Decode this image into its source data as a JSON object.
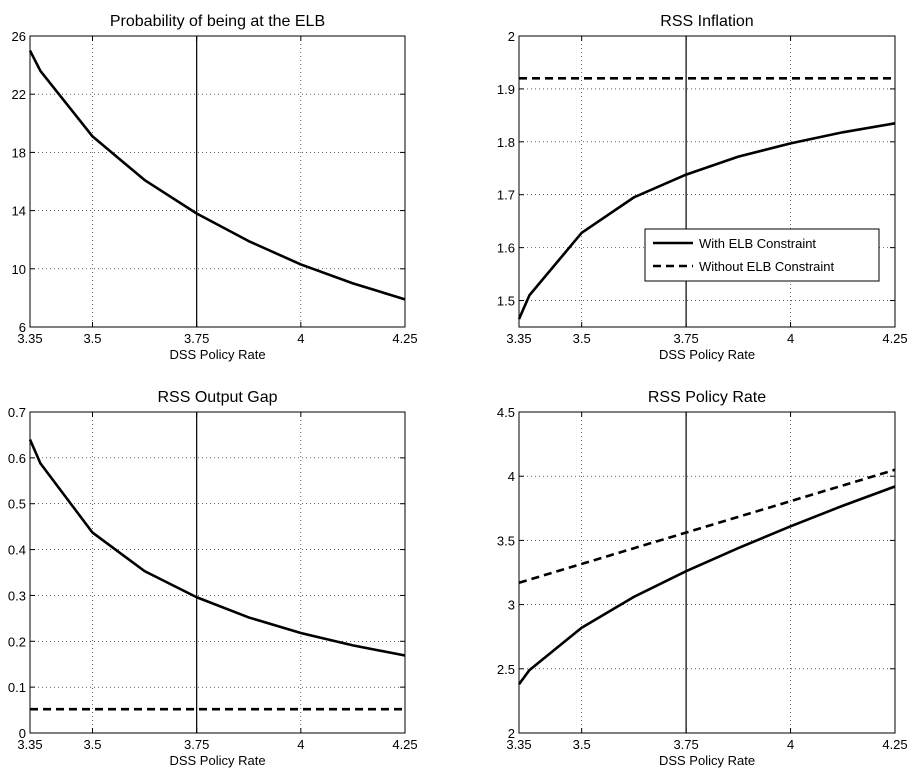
{
  "chart_data": [
    {
      "type": "line",
      "title": "Probability of being at the ELB",
      "xlabel": "DSS Policy Rate",
      "ylabel": "",
      "xlim": [
        3.35,
        4.25
      ],
      "ylim": [
        6,
        26
      ],
      "xticks": [
        3.35,
        3.5,
        3.75,
        4,
        4.25
      ],
      "xtick_labels": [
        "3.35",
        "3.5",
        "3.75",
        "4",
        "4.25"
      ],
      "yticks": [
        6,
        10,
        14,
        18,
        22,
        26
      ],
      "ytick_labels": [
        "6",
        "10",
        "14",
        "18",
        "22",
        "26"
      ],
      "grid": true,
      "vline": 3.75,
      "series": [
        {
          "style": "solid",
          "x": [
            3.35,
            3.375,
            3.5,
            3.625,
            3.75,
            3.875,
            4.0,
            4.125,
            4.25
          ],
          "y": [
            25.0,
            23.6,
            19.1,
            16.1,
            13.8,
            11.9,
            10.3,
            9.0,
            7.9
          ]
        }
      ]
    },
    {
      "type": "line",
      "title": "RSS Inflation",
      "xlabel": "DSS Policy Rate",
      "ylabel": "",
      "xlim": [
        3.35,
        4.25
      ],
      "ylim": [
        1.45,
        2.0
      ],
      "xticks": [
        3.35,
        3.5,
        3.75,
        4,
        4.25
      ],
      "xtick_labels": [
        "3.35",
        "3.5",
        "3.75",
        "4",
        "4.25"
      ],
      "yticks": [
        1.5,
        1.6,
        1.7,
        1.8,
        1.9,
        2.0
      ],
      "ytick_labels": [
        "1.5",
        "1.6",
        "1.7",
        "1.8",
        "1.9",
        "2"
      ],
      "grid": true,
      "vline": 3.75,
      "legend": {
        "placement": "center-right",
        "entries": [
          {
            "label": "With ELB Constraint",
            "style": "solid"
          },
          {
            "label": "Without ELB Constraint",
            "style": "dashed"
          }
        ]
      },
      "series": [
        {
          "name": "With ELB Constraint",
          "style": "solid",
          "x": [
            3.35,
            3.375,
            3.5,
            3.625,
            3.75,
            3.875,
            4.0,
            4.125,
            4.25
          ],
          "y": [
            1.465,
            1.51,
            1.628,
            1.695,
            1.738,
            1.772,
            1.797,
            1.818,
            1.835
          ]
        },
        {
          "name": "Without ELB Constraint",
          "style": "dashed",
          "x": [
            3.35,
            4.25
          ],
          "y": [
            1.92,
            1.92
          ]
        }
      ]
    },
    {
      "type": "line",
      "title": "RSS Output Gap",
      "xlabel": "DSS Policy Rate",
      "ylabel": "",
      "xlim": [
        3.35,
        4.25
      ],
      "ylim": [
        0,
        0.7
      ],
      "xticks": [
        3.35,
        3.5,
        3.75,
        4,
        4.25
      ],
      "xtick_labels": [
        "3.35",
        "3.5",
        "3.75",
        "4",
        "4.25"
      ],
      "yticks": [
        0,
        0.1,
        0.2,
        0.3,
        0.4,
        0.5,
        0.6,
        0.7
      ],
      "ytick_labels": [
        "0",
        "0.1",
        "0.2",
        "0.3",
        "0.4",
        "0.5",
        "0.6",
        "0.7"
      ],
      "grid": true,
      "vline": 3.75,
      "series": [
        {
          "style": "solid",
          "x": [
            3.35,
            3.375,
            3.5,
            3.625,
            3.75,
            3.875,
            4.0,
            4.125,
            4.25
          ],
          "y": [
            0.64,
            0.588,
            0.437,
            0.353,
            0.296,
            0.252,
            0.218,
            0.191,
            0.169
          ]
        },
        {
          "style": "dashed",
          "x": [
            3.35,
            4.25
          ],
          "y": [
            0.052,
            0.052
          ]
        }
      ]
    },
    {
      "type": "line",
      "title": "RSS Policy Rate",
      "xlabel": "DSS Policy Rate",
      "ylabel": "",
      "xlim": [
        3.35,
        4.25
      ],
      "ylim": [
        2,
        4.5
      ],
      "xticks": [
        3.35,
        3.5,
        3.75,
        4,
        4.25
      ],
      "xtick_labels": [
        "3.35",
        "3.5",
        "3.75",
        "4",
        "4.25"
      ],
      "yticks": [
        2,
        2.5,
        3,
        3.5,
        4,
        4.5
      ],
      "ytick_labels": [
        "2",
        "2.5",
        "3",
        "3.5",
        "4",
        "4.5"
      ],
      "grid": true,
      "vline": 3.75,
      "series": [
        {
          "style": "solid",
          "x": [
            3.35,
            3.375,
            3.5,
            3.625,
            3.75,
            3.875,
            4.0,
            4.125,
            4.25
          ],
          "y": [
            2.38,
            2.49,
            2.82,
            3.06,
            3.26,
            3.44,
            3.61,
            3.77,
            3.92
          ]
        },
        {
          "style": "dashed",
          "x": [
            3.35,
            4.25
          ],
          "y": [
            3.17,
            4.05
          ]
        }
      ]
    }
  ]
}
